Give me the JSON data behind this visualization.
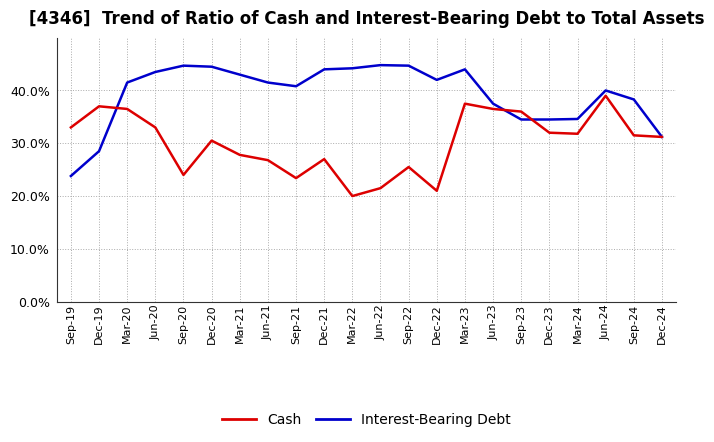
{
  "title": "[4346]  Trend of Ratio of Cash and Interest-Bearing Debt to Total Assets",
  "x_labels": [
    "Sep-19",
    "Dec-19",
    "Mar-20",
    "Jun-20",
    "Sep-20",
    "Dec-20",
    "Mar-21",
    "Jun-21",
    "Sep-21",
    "Dec-21",
    "Mar-22",
    "Jun-22",
    "Sep-22",
    "Dec-22",
    "Mar-23",
    "Jun-23",
    "Sep-23",
    "Dec-23",
    "Mar-24",
    "Jun-24",
    "Sep-24",
    "Dec-24"
  ],
  "cash": [
    0.33,
    0.37,
    0.365,
    0.33,
    0.24,
    0.305,
    0.278,
    0.268,
    0.234,
    0.27,
    0.2,
    0.215,
    0.255,
    0.21,
    0.375,
    0.365,
    0.36,
    0.32,
    0.318,
    0.39,
    0.315,
    0.312
  ],
  "ibd": [
    0.238,
    0.285,
    0.415,
    0.435,
    0.447,
    0.445,
    0.43,
    0.415,
    0.408,
    0.44,
    0.442,
    0.448,
    0.447,
    0.42,
    0.44,
    0.375,
    0.345,
    0.345,
    0.346,
    0.4,
    0.383,
    0.312
  ],
  "cash_color": "#dd0000",
  "ibd_color": "#0000cc",
  "background_color": "#ffffff",
  "grid_color": "#aaaaaa",
  "ylim": [
    0.0,
    0.5
  ],
  "yticks": [
    0.0,
    0.1,
    0.2,
    0.3,
    0.4
  ],
  "title_fontsize": 12,
  "legend_labels": [
    "Cash",
    "Interest-Bearing Debt"
  ]
}
